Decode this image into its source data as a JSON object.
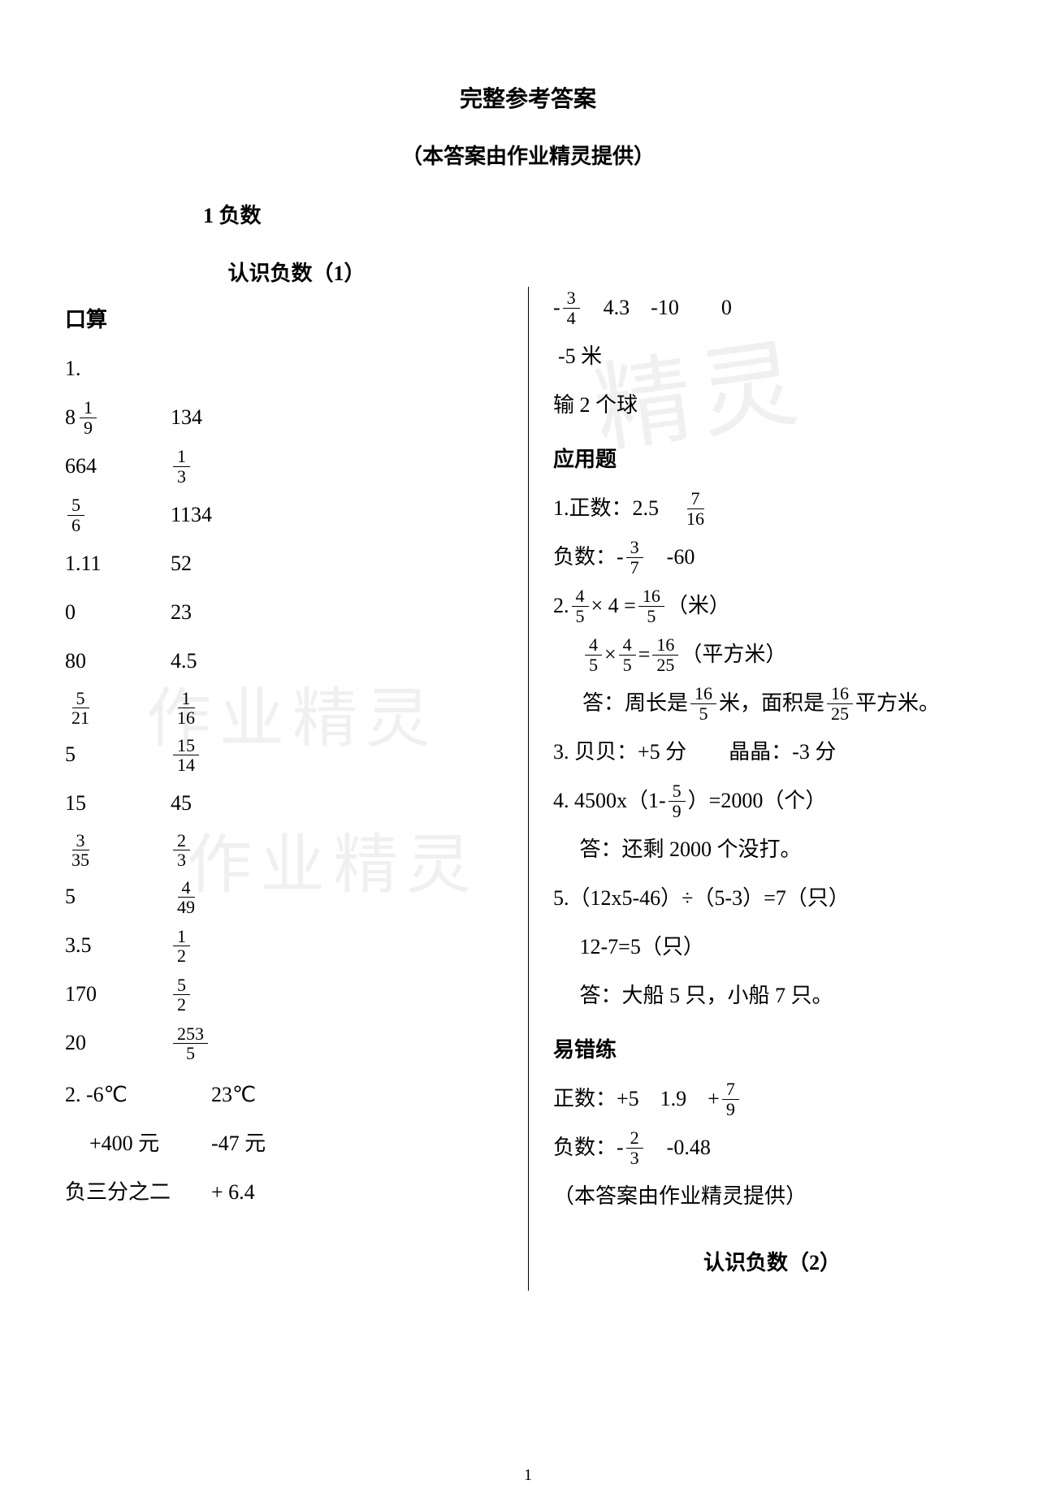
{
  "header": {
    "main_title": "完整参考答案",
    "sub_title": "（本答案由作业精灵提供）",
    "chapter": "1 负数",
    "section": "认识负数（1）"
  },
  "left": {
    "kousuan_heading": "口算",
    "q1_label": "1.",
    "rows": [
      {
        "a": {
          "type": "mixed",
          "whole": "8",
          "num": "1",
          "den": "9"
        },
        "b": {
          "type": "text",
          "txt": "134"
        }
      },
      {
        "a": {
          "type": "text",
          "txt": "664"
        },
        "b": {
          "type": "frac",
          "num": "1",
          "den": "3"
        }
      },
      {
        "a": {
          "type": "frac",
          "num": "5",
          "den": "6"
        },
        "b": {
          "type": "text",
          "txt": "1134"
        }
      },
      {
        "a": {
          "type": "text",
          "txt": "1.11"
        },
        "b": {
          "type": "text",
          "txt": "52"
        }
      },
      {
        "a": {
          "type": "text",
          "txt": "0"
        },
        "b": {
          "type": "text",
          "txt": "23"
        }
      },
      {
        "a": {
          "type": "text",
          "txt": "80"
        },
        "b": {
          "type": "text",
          "txt": "4.5"
        }
      },
      {
        "a": {
          "type": "frac",
          "num": "5",
          "den": "21"
        },
        "b": {
          "type": "frac",
          "num": "1",
          "den": "16"
        }
      },
      {
        "a": {
          "type": "text",
          "txt": "5"
        },
        "b": {
          "type": "frac",
          "num": "15",
          "den": "14"
        }
      },
      {
        "a": {
          "type": "text",
          "txt": "15"
        },
        "b": {
          "type": "text",
          "txt": "45"
        }
      },
      {
        "a": {
          "type": "frac",
          "num": "3",
          "den": "35"
        },
        "b": {
          "type": "frac",
          "num": "2",
          "den": "3"
        }
      },
      {
        "a": {
          "type": "text",
          "txt": "5"
        },
        "b": {
          "type": "frac",
          "num": "4",
          "den": "49"
        }
      },
      {
        "a": {
          "type": "text",
          "txt": "3.5"
        },
        "b": {
          "type": "frac",
          "num": "1",
          "den": "2"
        }
      },
      {
        "a": {
          "type": "text",
          "txt": "170"
        },
        "b": {
          "type": "frac",
          "num": "5",
          "den": "2"
        }
      },
      {
        "a": {
          "type": "text",
          "txt": "20"
        },
        "b": {
          "type": "frac",
          "num": "253",
          "den": "5"
        }
      }
    ],
    "q2": {
      "label": "2. -6℃",
      "col2": "23℃",
      "r2a": "+400 元",
      "r2b": "-47 元",
      "r3a": "负三分之二",
      "r3b": "+ 6.4"
    }
  },
  "right": {
    "top1": {
      "prefix": "-",
      "num": "3",
      "den": "4",
      "rest": "　4.3　-10　　0"
    },
    "top2": "-5 米",
    "top3": "输 2 个球",
    "app_heading": "应用题",
    "app1_label": "1.正数：2.5　",
    "app1_frac": {
      "num": "7",
      "den": "16"
    },
    "app1_neg_label": " 负数：-",
    "app1_neg_frac": {
      "num": "3",
      "den": "7"
    },
    "app1_neg_rest": "　-60",
    "app2_label": "2. ",
    "app2_f1a": {
      "num": "4",
      "den": "5"
    },
    "app2_eq1_mid": "× 4 =",
    "app2_f1b": {
      "num": "16",
      "den": "5"
    },
    "app2_unit1": "（米）",
    "app2_f2a": {
      "num": "4",
      "den": "5"
    },
    "app2_mul": "×",
    "app2_f2b": {
      "num": "4",
      "den": "5"
    },
    "app2_eq": "=",
    "app2_f2c": {
      "num": "16",
      "den": "25"
    },
    "app2_unit2": "（平方米）",
    "app2_ans_pre": "答：周长是",
    "app2_ans_f1": {
      "num": "16",
      "den": "5"
    },
    "app2_ans_mid": "米，面积是",
    "app2_ans_f2": {
      "num": "16",
      "den": "25"
    },
    "app2_ans_suf": "平方米。",
    "app3": "3.  贝贝：+5 分　　晶晶：-3 分",
    "app4_pre": "4. 4500x（1-",
    "app4_frac": {
      "num": "5",
      "den": "9"
    },
    "app4_suf": "）=2000（个）",
    "app4_ans": "　 答：还剩 2000 个没打。",
    "app5_1": "5.（12x5-46）÷（5-3）=7（只）",
    "app5_2": "　 12-7=5（只）",
    "app5_3": "　 答：大船 5 只，小船 7 只。",
    "err_heading": "易错练",
    "err1_pre": "正数：+5　1.9　+",
    "err1_frac": {
      "num": "7",
      "den": "9"
    },
    "err2_pre": "负数：-",
    "err2_frac": {
      "num": "2",
      "den": "3"
    },
    "err2_suf": "　-0.48",
    "credit": "（本答案由作业精灵提供）",
    "next_section": "认识负数（2）"
  },
  "watermark": {
    "t1": "作业精灵",
    "t2": "作业精灵",
    "t3": "精灵"
  },
  "page_number": "1"
}
